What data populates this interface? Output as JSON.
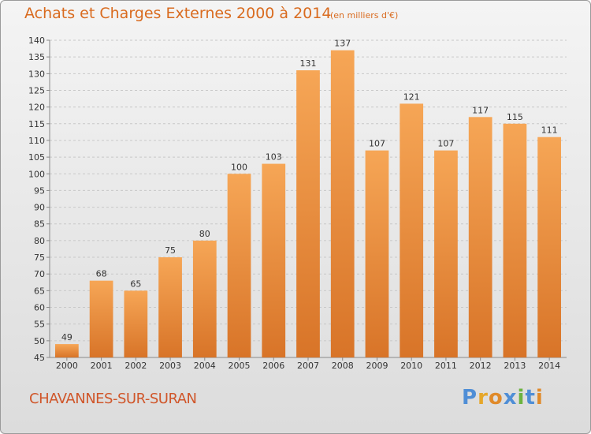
{
  "title": "Achats et Charges Externes 2000 à 2014",
  "subtitle": "(en milliers d'€)",
  "commune": "CHAVANNES-SUR-SURAN",
  "logo": {
    "text": "Proxiti",
    "letter_colors": [
      "#4f8ed6",
      "#e6a72a",
      "#e08a2a",
      "#4f8ed6",
      "#6cb33f",
      "#4f8ed6",
      "#e08a2a"
    ]
  },
  "colors": {
    "bar_light": "#f6a656",
    "bar_dark": "#d87428",
    "grid": "#c8c8c8",
    "text": "#333333",
    "accent": "#d96b1f"
  },
  "chart_data": {
    "type": "bar",
    "categories": [
      "2000",
      "2001",
      "2002",
      "2003",
      "2004",
      "2005",
      "2006",
      "2007",
      "2008",
      "2009",
      "2010",
      "2011",
      "2012",
      "2013",
      "2014"
    ],
    "values": [
      49,
      68,
      65,
      75,
      80,
      100,
      103,
      131,
      137,
      107,
      121,
      107,
      117,
      115,
      111
    ],
    "ylim": [
      45,
      140
    ],
    "yticks": [
      45,
      50,
      55,
      60,
      65,
      70,
      75,
      80,
      85,
      90,
      95,
      100,
      105,
      110,
      115,
      120,
      125,
      130,
      135,
      140
    ],
    "grid": "horizontal dashed",
    "data_labels": true
  }
}
